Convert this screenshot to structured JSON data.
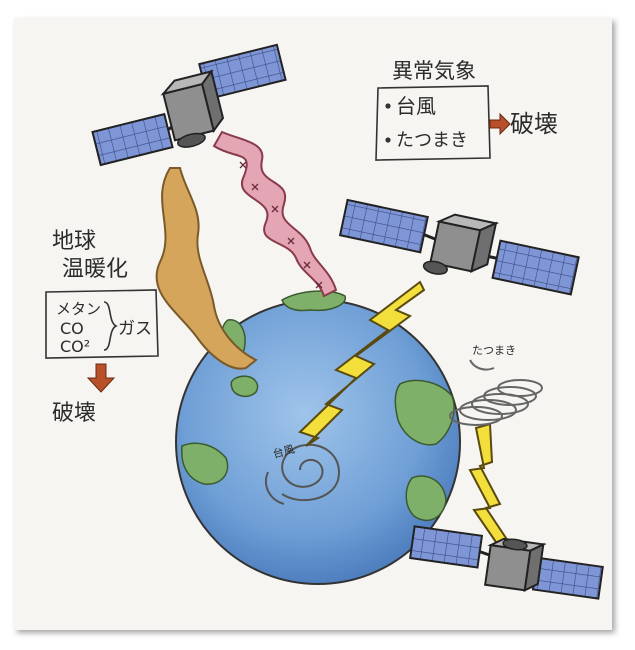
{
  "drawing": {
    "weather_box": {
      "title": "異常気象",
      "items": [
        "台風",
        "たつまき"
      ]
    },
    "weather_result": "破壊",
    "warming_title": [
      "地球",
      "温暖化"
    ],
    "gas_box": {
      "items": [
        "メタン",
        "CO",
        "CO²"
      ],
      "label": "ガス"
    },
    "gas_result": "破壊",
    "typhoon_label": "台風",
    "tornado_label": "たつまき"
  }
}
